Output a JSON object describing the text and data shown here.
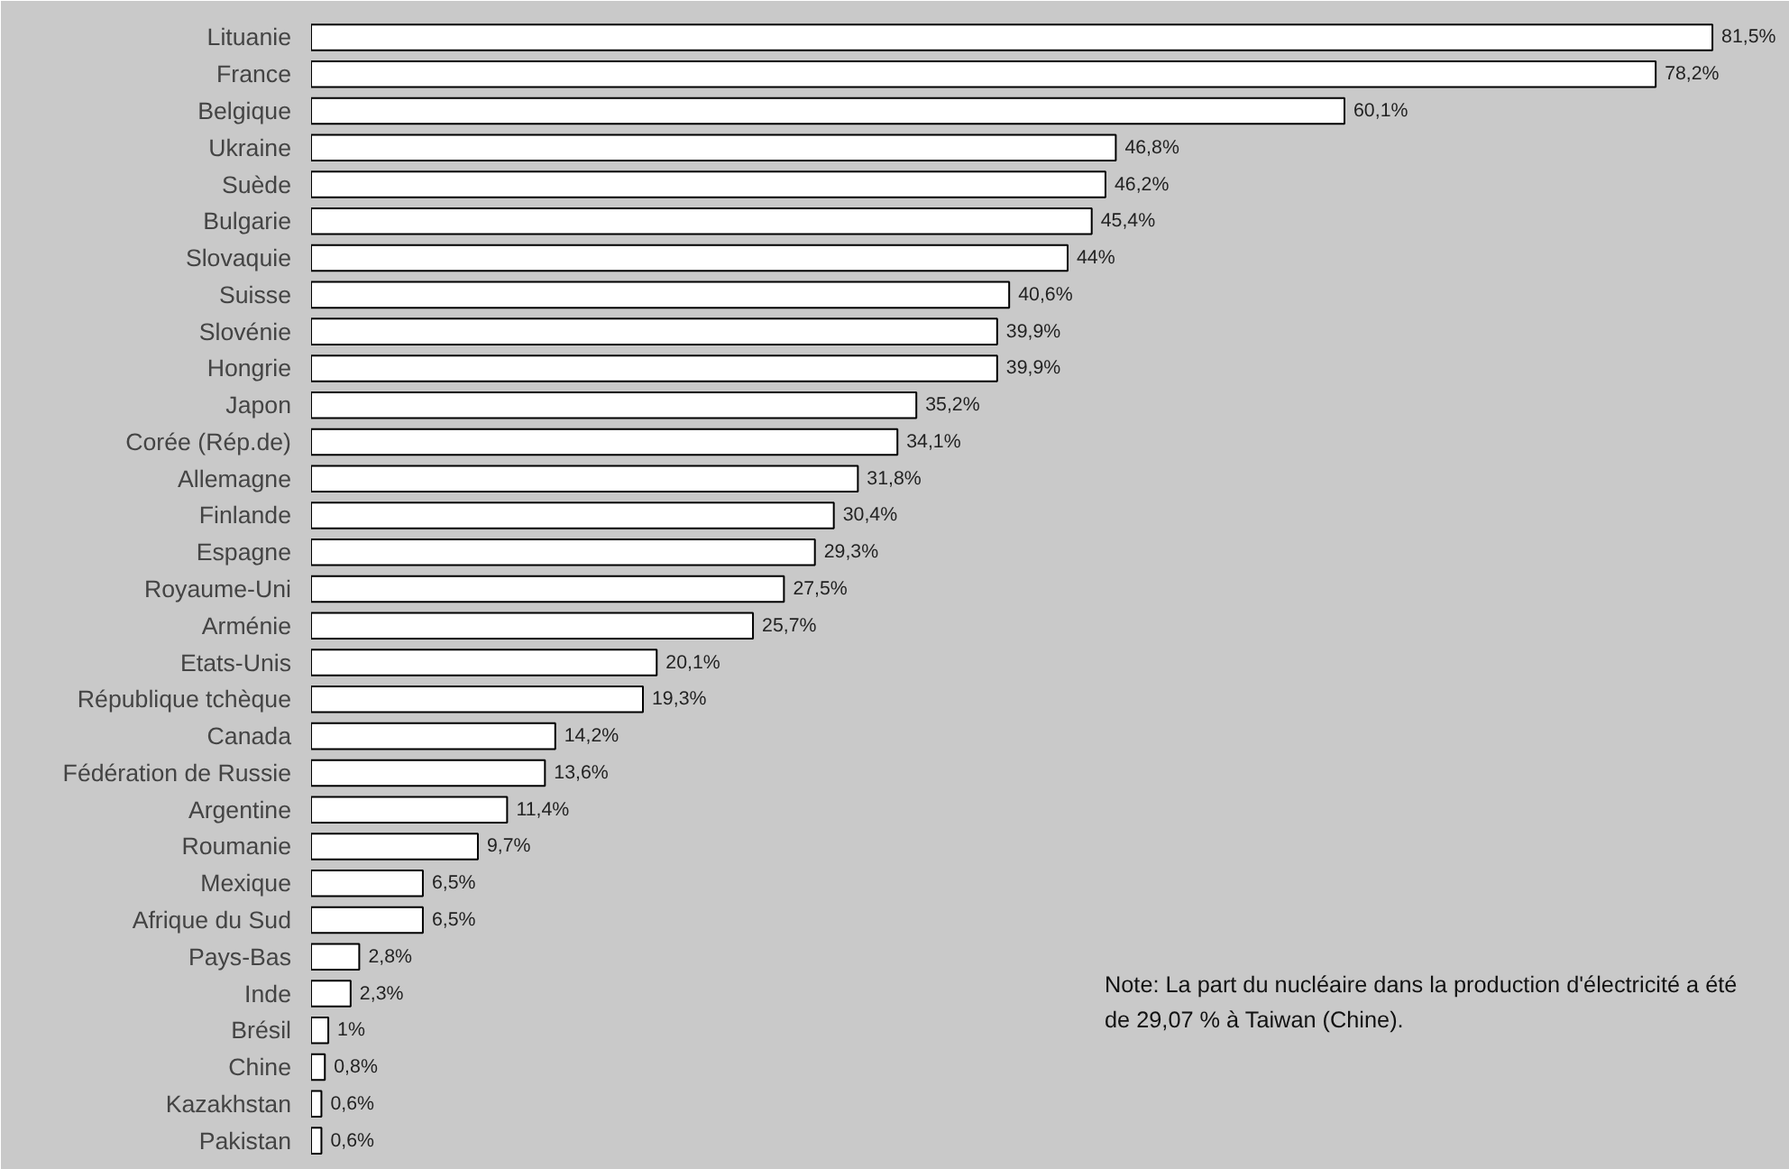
{
  "chart_data": {
    "type": "bar",
    "orientation": "horizontal",
    "categories": [
      "Lituanie",
      "France",
      "Belgique",
      "Ukraine",
      "Suède",
      "Bulgarie",
      "Slovaquie",
      "Suisse",
      "Slovénie",
      "Hongrie",
      "Japon",
      "Corée (Rép.de)",
      "Allemagne",
      "Finlande",
      "Espagne",
      "Royaume-Uni",
      "Arménie",
      "Etats-Unis",
      "République tchèque",
      "Canada",
      "Fédération de Russie",
      "Argentine",
      "Roumanie",
      "Mexique",
      "Afrique du Sud",
      "Pays-Bas",
      "Inde",
      "Brésil",
      "Chine",
      "Kazakhstan",
      "Pakistan"
    ],
    "values": [
      81.5,
      78.2,
      60.1,
      46.8,
      46.2,
      45.4,
      44,
      40.6,
      39.9,
      39.9,
      35.2,
      34.1,
      31.8,
      30.4,
      29.3,
      27.5,
      25.7,
      20.1,
      19.3,
      14.2,
      13.6,
      11.4,
      9.7,
      6.5,
      6.5,
      2.8,
      2.3,
      1,
      0.8,
      0.6,
      0.6
    ],
    "value_labels": [
      "81,5%",
      "78,2%",
      "60,1%",
      "46,8%",
      "46,2%",
      "45,4%",
      "44%",
      "40,6%",
      "39,9%",
      "39,9%",
      "35,2%",
      "34,1%",
      "31,8%",
      "30,4%",
      "29,3%",
      "27,5%",
      "25,7%",
      "20,1%",
      "19,3%",
      "14,2%",
      "13,6%",
      "11,4%",
      "9,7%",
      "6,5%",
      "6,5%",
      "2,8%",
      "2,3%",
      "1%",
      "0,8%",
      "0,6%",
      "0,6%"
    ],
    "color": "#ffffff",
    "annotations": [
      "Note: La part du nucléaire dans la production d'électricité a été de 29,07 % à Taiwan (Chine)."
    ],
    "grid": false
  }
}
